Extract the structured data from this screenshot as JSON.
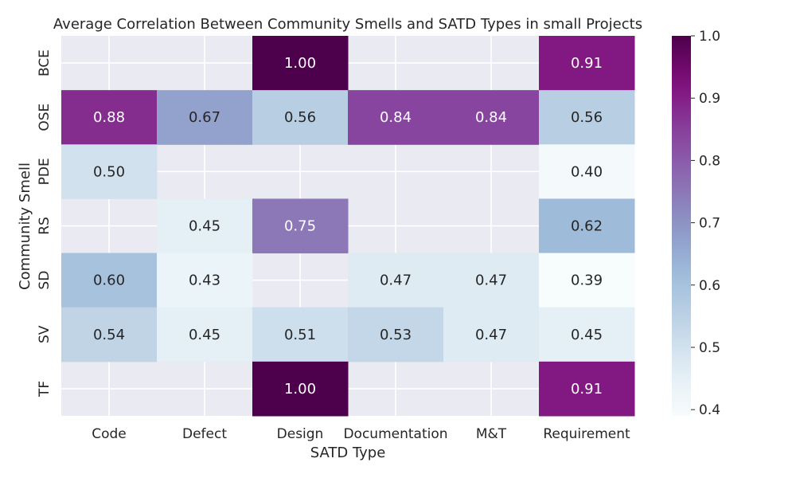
{
  "chart_data": {
    "type": "heatmap",
    "title": "Average Correlation Between Community Smells and SATD Types in small Projects",
    "xlabel": "SATD Type",
    "ylabel": "Community Smell",
    "x_categories": [
      "Code",
      "Defect",
      "Design",
      "Documentation",
      "M&T",
      "Requirement"
    ],
    "y_categories": [
      "BCE",
      "OSE",
      "PDE",
      "RS",
      "SD",
      "SV",
      "TF"
    ],
    "values": [
      [
        null,
        null,
        1.0,
        null,
        null,
        0.91
      ],
      [
        0.88,
        0.67,
        0.56,
        0.84,
        0.84,
        0.56
      ],
      [
        0.5,
        null,
        null,
        null,
        null,
        0.4
      ],
      [
        null,
        0.45,
        0.75,
        null,
        null,
        0.62
      ],
      [
        0.6,
        0.43,
        null,
        0.47,
        0.47,
        0.39
      ],
      [
        0.54,
        0.45,
        0.51,
        0.53,
        0.47,
        0.45
      ],
      [
        null,
        null,
        1.0,
        null,
        null,
        0.91
      ]
    ],
    "cell_labels": [
      [
        "",
        "",
        "1.00",
        "",
        "",
        "0.91"
      ],
      [
        "0.88",
        "0.67",
        "0.56",
        "0.84",
        "0.84",
        "0.56"
      ],
      [
        "0.50",
        "",
        "",
        "",
        "",
        "0.40"
      ],
      [
        "",
        "0.45",
        "0.75",
        "",
        "",
        "0.62"
      ],
      [
        "0.60",
        "0.43",
        "",
        "0.47",
        "0.47",
        "0.39"
      ],
      [
        "0.54",
        "0.45",
        "0.51",
        "0.53",
        "0.47",
        "0.45"
      ],
      [
        "",
        "",
        "1.00",
        "",
        "",
        "0.91"
      ]
    ],
    "colorbar": {
      "min": 0.39,
      "max": 1.0,
      "ticks": [
        "0.4",
        "0.5",
        "0.6",
        "0.7",
        "0.8",
        "0.9",
        "1.0"
      ],
      "colormap": "BuPu"
    },
    "grid": true,
    "background_color": "#eaeaf2"
  }
}
